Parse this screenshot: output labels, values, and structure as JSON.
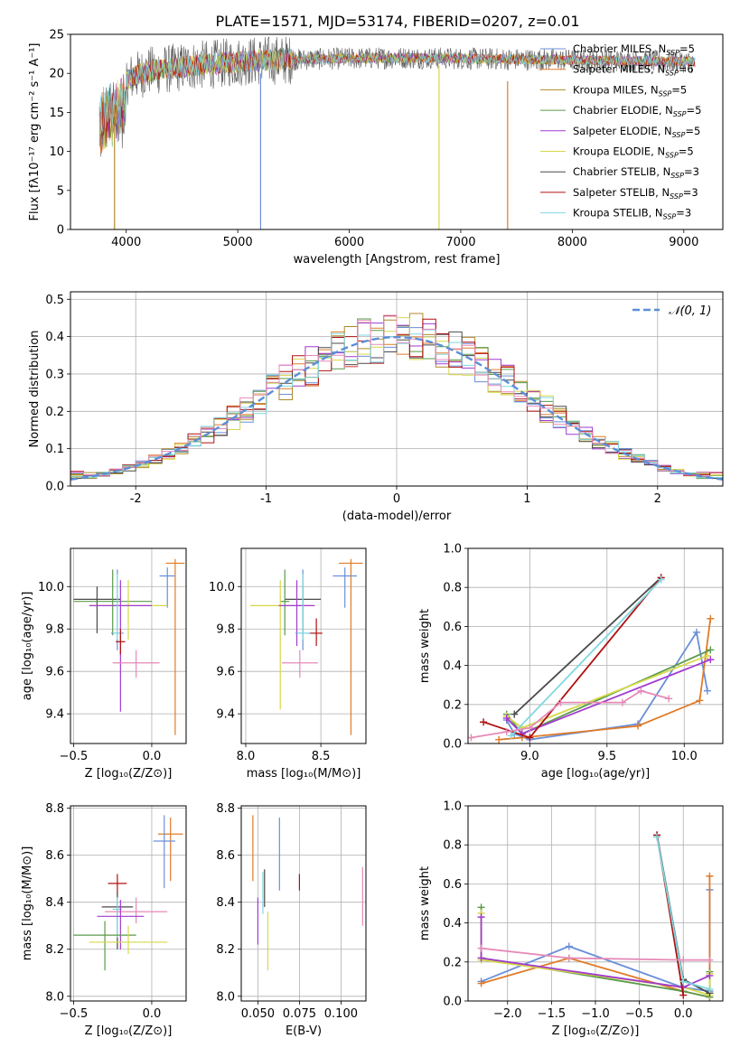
{
  "figure_title": "PLATE=1571, MJD=53174, FIBERID=0207, z=0.01",
  "colors": {
    "chabrier_miles": "#6a8fd8",
    "salpeter_miles": "#e07b28",
    "kroupa_miles": "#b08a2a",
    "chabrier_elodie": "#5a9a4a",
    "salpeter_elodie": "#a23ad0",
    "kroupa_elodie": "#d6d84a",
    "chabrier_stelib": "#4a4a4a",
    "salpeter_stelib": "#b01010",
    "kroupa_stelib": "#7fd8e0",
    "pink": "#e68ab8",
    "grid": "#b0b0b0",
    "normal_curve": "#5b8fd8"
  },
  "chart_data": [
    {
      "id": "spectrum",
      "type": "line",
      "title": "PLATE=1571, MJD=53174, FIBERID=0207, z=0.01",
      "xlabel": "wavelength [Angstrom, rest frame]",
      "ylabel": "Flux [fλ10⁻¹⁷ erg cm⁻² s⁻¹ A⁻¹]",
      "xlim": [
        3500,
        9350
      ],
      "ylim": [
        0,
        25
      ],
      "xticks": [
        4000,
        5000,
        6000,
        7000,
        8000,
        9000
      ],
      "yticks": [
        0,
        5,
        10,
        15,
        20,
        25
      ],
      "grid": false,
      "legend_position": "top-right",
      "legend": [
        {
          "label": "Chabrier MILES, N",
          "sub": "SSP",
          "suffix": "=5",
          "color_key": "chabrier_miles"
        },
        {
          "label": "Salpeter MILES, N",
          "sub": "SSP",
          "suffix": "=6",
          "color_key": "salpeter_miles"
        },
        {
          "label": "Kroupa MILES, N",
          "sub": "SSP",
          "suffix": "=5",
          "color_key": "kroupa_miles"
        },
        {
          "label": "Chabrier ELODIE, N",
          "sub": "SSP",
          "suffix": "=5",
          "color_key": "chabrier_elodie"
        },
        {
          "label": "Salpeter ELODIE, N",
          "sub": "SSP",
          "suffix": "=5",
          "color_key": "salpeter_elodie"
        },
        {
          "label": "Kroupa ELODIE, N",
          "sub": "SSP",
          "suffix": "=5",
          "color_key": "kroupa_elodie"
        },
        {
          "label": "Chabrier STELIB, N",
          "sub": "SSP",
          "suffix": "=3",
          "color_key": "chabrier_stelib"
        },
        {
          "label": "Salpeter STELIB, N",
          "sub": "SSP",
          "suffix": "=3",
          "color_key": "salpeter_stelib"
        },
        {
          "label": "Kroupa STELIB, N",
          "sub": "SSP",
          "suffix": "=3",
          "color_key": "kroupa_stelib"
        }
      ],
      "continuum": {
        "x": [
          3750,
          3850,
          3950,
          4050,
          4200,
          4400,
          4600,
          4800,
          5000,
          5300,
          5600,
          6000,
          6500,
          7000,
          7500,
          8000,
          8500,
          9000,
          9100
        ],
        "y": [
          16.5,
          17.5,
          18.5,
          19.5,
          20.3,
          20.6,
          21.0,
          21.2,
          21.5,
          21.7,
          21.8,
          21.9,
          22.0,
          21.9,
          21.8,
          21.7,
          21.6,
          21.5,
          21.4
        ]
      },
      "drop_lines": [
        {
          "x": 3895,
          "ymin": 0,
          "ymax": 14,
          "color_key": "kroupa_miles"
        },
        {
          "x": 5205,
          "ymin": 0,
          "ymax": 20,
          "color_key": "chabrier_miles"
        },
        {
          "x": 6805,
          "ymin": 0,
          "ymax": 21,
          "color_key": "kroupa_elodie"
        },
        {
          "x": 7420,
          "ymin": 0,
          "ymax": 19,
          "color_key": "salpeter_miles"
        }
      ]
    },
    {
      "id": "residuals",
      "type": "histogram",
      "xlabel": "(data-model)/error",
      "ylabel": "Normed distribution",
      "xlim": [
        -2.5,
        2.5
      ],
      "ylim": [
        0,
        0.52
      ],
      "xticks": [
        -2,
        -1,
        0,
        1,
        2
      ],
      "yticks": [
        0.0,
        0.1,
        0.2,
        0.3,
        0.4,
        0.5
      ],
      "grid": true,
      "legend_position": "top-right",
      "legend": [
        {
          "label": "𝒩(0, 1)",
          "color_key": "normal_curve",
          "style": "dashed"
        }
      ],
      "bin_width": 0.1,
      "bin_start": -2.5,
      "normal_curve": {
        "mean": 0,
        "sigma": 1
      },
      "series_color_keys": [
        "chabrier_miles",
        "salpeter_miles",
        "kroupa_miles",
        "chabrier_elodie",
        "salpeter_elodie",
        "kroupa_elodie",
        "chabrier_stelib",
        "salpeter_stelib",
        "kroupa_stelib",
        "pink"
      ]
    },
    {
      "id": "z_vs_age",
      "type": "errorbar",
      "xlabel": "Z [log₁₀(Z/Z⊙)]",
      "ylabel": "age  [log₁₀(age/yr)]",
      "xlim": [
        -0.52,
        0.22
      ],
      "ylim": [
        9.26,
        10.18
      ],
      "xticks": [
        -0.5,
        0.0
      ],
      "xtick_labels": [
        "−0.5",
        "0.0"
      ],
      "yticks": [
        9.4,
        9.6,
        9.8,
        10.0
      ],
      "ytick_labels": [
        "9.4",
        "9.6",
        "9.8",
        "10.0"
      ],
      "grid": true,
      "points": [
        {
          "x": 0.15,
          "xerr": 0.06,
          "y": 10.11,
          "ylo": 9.3,
          "yhi": 10.13,
          "color_key": "salpeter_miles"
        },
        {
          "x": 0.1,
          "xerr": 0.05,
          "y": 10.05,
          "ylo": 9.9,
          "yhi": 10.09,
          "color_key": "chabrier_miles"
        },
        {
          "x": -0.35,
          "xerr": 0.15,
          "y": 9.94,
          "ylo": 9.78,
          "yhi": 10.0,
          "color_key": "chabrier_stelib"
        },
        {
          "x": -0.25,
          "xerr": 0.25,
          "y": 9.93,
          "ylo": 9.77,
          "yhi": 10.08,
          "color_key": "chabrier_elodie"
        },
        {
          "x": -0.15,
          "xerr": 0.25,
          "y": 9.91,
          "ylo": 9.75,
          "yhi": 10.03,
          "color_key": "kroupa_elodie"
        },
        {
          "x": -0.2,
          "xerr": 0.2,
          "y": 9.91,
          "ylo": 9.41,
          "yhi": 10.03,
          "color_key": "salpeter_elodie"
        },
        {
          "x": -0.22,
          "xerr": 0.04,
          "y": 9.78,
          "ylo": 9.7,
          "yhi": 10.08,
          "color_key": "chabrier_miles"
        },
        {
          "x": -0.22,
          "xerr": 0.03,
          "y": 9.78,
          "ylo": 9.75,
          "yhi": 10.06,
          "color_key": "kroupa_stelib"
        },
        {
          "x": -0.2,
          "xerr": 0.03,
          "y": 9.74,
          "ylo": 9.68,
          "yhi": 9.8,
          "color_key": "salpeter_stelib"
        },
        {
          "x": -0.1,
          "xerr": 0.15,
          "y": 9.64,
          "ylo": 9.57,
          "yhi": 9.7,
          "color_key": "pink"
        }
      ]
    },
    {
      "id": "mass_vs_age",
      "type": "errorbar",
      "xlabel": "mass [log₁₀(M/M⊙)]",
      "ylabel": "",
      "xlim": [
        7.97,
        8.8
      ],
      "ylim": [
        9.26,
        10.18
      ],
      "xticks": [
        8.0,
        8.5
      ],
      "xtick_labels": [
        "8.0",
        "8.5"
      ],
      "yticks": [
        9.4,
        9.6,
        9.8,
        10.0
      ],
      "ytick_labels": [
        "9.4",
        "9.6",
        "9.8",
        "10.0"
      ],
      "grid": true,
      "points": [
        {
          "x": 8.7,
          "xerr": 0.08,
          "y": 10.11,
          "ylo": 9.3,
          "yhi": 10.13,
          "color_key": "salpeter_miles"
        },
        {
          "x": 8.66,
          "xerr": 0.08,
          "y": 10.05,
          "ylo": 9.9,
          "yhi": 10.09,
          "color_key": "chabrier_miles"
        },
        {
          "x": 8.38,
          "xerr": 0.12,
          "y": 9.94,
          "ylo": 9.78,
          "yhi": 10.0,
          "color_key": "chabrier_stelib"
        },
        {
          "x": 8.26,
          "xerr": 0.03,
          "y": 9.93,
          "ylo": 9.77,
          "yhi": 10.08,
          "color_key": "chabrier_elodie"
        },
        {
          "x": 8.23,
          "xerr": 0.2,
          "y": 9.91,
          "ylo": 9.42,
          "yhi": 10.03,
          "color_key": "kroupa_elodie"
        },
        {
          "x": 8.34,
          "xerr": 0.12,
          "y": 9.91,
          "ylo": 9.72,
          "yhi": 10.03,
          "color_key": "salpeter_elodie"
        },
        {
          "x": 8.38,
          "xerr": 0.05,
          "y": 9.78,
          "ylo": 9.7,
          "yhi": 10.08,
          "color_key": "chabrier_miles"
        },
        {
          "x": 8.38,
          "xerr": 0.04,
          "y": 9.78,
          "ylo": 9.75,
          "yhi": 10.06,
          "color_key": "kroupa_stelib"
        },
        {
          "x": 8.47,
          "xerr": 0.04,
          "y": 9.78,
          "ylo": 9.72,
          "yhi": 9.85,
          "color_key": "salpeter_stelib"
        },
        {
          "x": 8.36,
          "xerr": 0.12,
          "y": 9.64,
          "ylo": 9.57,
          "yhi": 9.7,
          "color_key": "pink"
        }
      ]
    },
    {
      "id": "age_vs_mass_weight",
      "type": "line",
      "xlabel": "age  [log₁₀(age/yr)]",
      "ylabel": "mass weight",
      "xlim": [
        8.6,
        10.25
      ],
      "ylim": [
        0,
        1.0
      ],
      "xticks": [
        9.0,
        9.5,
        10.0
      ],
      "xtick_labels": [
        "9.0",
        "9.5",
        "10.0"
      ],
      "yticks": [
        0.0,
        0.2,
        0.4,
        0.6,
        0.8,
        1.0
      ],
      "ytick_labels": [
        "0.0",
        "0.2",
        "0.4",
        "0.6",
        "0.8",
        "1.0"
      ],
      "grid": true,
      "marker": "+",
      "series": [
        {
          "color_key": "chabrier_miles",
          "x": [
            8.85,
            8.9,
            9.0,
            9.7,
            10.08,
            10.15
          ],
          "y": [
            0.12,
            0.05,
            0.02,
            0.1,
            0.57,
            0.27
          ]
        },
        {
          "color_key": "salpeter_miles",
          "x": [
            8.8,
            8.95,
            9.7,
            10.1,
            10.17
          ],
          "y": [
            0.02,
            0.03,
            0.09,
            0.22,
            0.64
          ]
        },
        {
          "color_key": "chabrier_elodie",
          "x": [
            8.85,
            8.95,
            10.17
          ],
          "y": [
            0.15,
            0.05,
            0.48
          ]
        },
        {
          "color_key": "kroupa_elodie",
          "x": [
            8.85,
            8.95,
            10.15
          ],
          "y": [
            0.14,
            0.08,
            0.45
          ]
        },
        {
          "color_key": "salpeter_elodie",
          "x": [
            8.85,
            8.95,
            10.17
          ],
          "y": [
            0.13,
            0.05,
            0.43
          ]
        },
        {
          "color_key": "chabrier_stelib",
          "x": [
            8.9,
            9.85
          ],
          "y": [
            0.15,
            0.85
          ]
        },
        {
          "color_key": "salpeter_stelib",
          "x": [
            8.7,
            9.0,
            9.85
          ],
          "y": [
            0.11,
            0.03,
            0.85
          ]
        },
        {
          "color_key": "kroupa_stelib",
          "x": [
            8.88,
            9.85
          ],
          "y": [
            0.04,
            0.84
          ]
        },
        {
          "color_key": "pink",
          "x": [
            8.62,
            8.85,
            9.0,
            9.2,
            9.6,
            9.72,
            9.9
          ],
          "y": [
            0.03,
            0.06,
            0.08,
            0.21,
            0.21,
            0.27,
            0.23
          ]
        }
      ]
    },
    {
      "id": "z_vs_mass",
      "type": "errorbar",
      "xlabel": "Z [log₁₀(Z/Z⊙)]",
      "ylabel": "mass [log₁₀(M/M⊙)]",
      "xlim": [
        -0.52,
        0.22
      ],
      "ylim": [
        7.98,
        8.81
      ],
      "xticks": [
        -0.5,
        0.0
      ],
      "xtick_labels": [
        "−0.5",
        "0.0"
      ],
      "yticks": [
        8.0,
        8.2,
        8.4,
        8.6,
        8.8
      ],
      "ytick_labels": [
        "8.0",
        "8.2",
        "8.4",
        "8.6",
        "8.8"
      ],
      "grid": true,
      "points": [
        {
          "x": 0.12,
          "xerr": 0.08,
          "y": 8.69,
          "ylo": 8.49,
          "yhi": 8.76,
          "color_key": "salpeter_miles"
        },
        {
          "x": 0.08,
          "xerr": 0.07,
          "y": 8.66,
          "ylo": 8.46,
          "yhi": 8.77,
          "color_key": "chabrier_miles"
        },
        {
          "x": -0.22,
          "xerr": 0.06,
          "y": 8.48,
          "ylo": 8.43,
          "yhi": 8.52,
          "color_key": "salpeter_stelib"
        },
        {
          "x": -0.22,
          "xerr": 0.1,
          "y": 8.38,
          "ylo": 8.2,
          "yhi": 8.44,
          "color_key": "chabrier_stelib"
        },
        {
          "x": -0.22,
          "xerr": 0.03,
          "y": 8.37,
          "ylo": 8.25,
          "yhi": 8.42,
          "color_key": "kroupa_stelib"
        },
        {
          "x": -0.1,
          "xerr": 0.2,
          "y": 8.36,
          "ylo": 8.31,
          "yhi": 8.42,
          "color_key": "pink"
        },
        {
          "x": -0.2,
          "xerr": 0.15,
          "y": 8.34,
          "ylo": 8.2,
          "yhi": 8.41,
          "color_key": "salpeter_elodie"
        },
        {
          "x": -0.3,
          "xerr": 0.2,
          "y": 8.26,
          "ylo": 8.11,
          "yhi": 8.32,
          "color_key": "chabrier_elodie"
        },
        {
          "x": -0.15,
          "xerr": 0.25,
          "y": 8.23,
          "ylo": 8.18,
          "yhi": 8.3,
          "color_key": "kroupa_elodie"
        }
      ]
    },
    {
      "id": "ebv_vs_mass",
      "type": "errorbar",
      "xlabel": "E(B-V)",
      "ylabel": "",
      "xlim": [
        0.04,
        0.115
      ],
      "ylim": [
        7.98,
        8.81
      ],
      "xticks": [
        0.05,
        0.075,
        0.1
      ],
      "xtick_labels": [
        "0.050",
        "0.075",
        "0.100"
      ],
      "yticks": [
        8.0,
        8.2,
        8.4,
        8.6,
        8.8
      ],
      "ytick_labels": [
        "8.0",
        "8.2",
        "8.4",
        "8.6",
        "8.8"
      ],
      "grid": true,
      "points": [
        {
          "x": 0.047,
          "xerr": 0,
          "y": 8.63,
          "ylo": 8.49,
          "yhi": 8.77,
          "color_key": "salpeter_miles"
        },
        {
          "x": 0.063,
          "xerr": 0,
          "y": 8.61,
          "ylo": 8.45,
          "yhi": 8.76,
          "color_key": "chabrier_miles"
        },
        {
          "x": 0.054,
          "xerr": 0,
          "y": 8.47,
          "ylo": 8.38,
          "yhi": 8.54,
          "color_key": "chabrier_stelib"
        },
        {
          "x": 0.053,
          "xerr": 0,
          "y": 8.44,
          "ylo": 8.35,
          "yhi": 8.53,
          "color_key": "kroupa_stelib"
        },
        {
          "x": 0.05,
          "xerr": 0,
          "y": 8.32,
          "ylo": 8.22,
          "yhi": 8.42,
          "color_key": "salpeter_elodie"
        },
        {
          "x": 0.056,
          "xerr": 0,
          "y": 8.25,
          "ylo": 8.11,
          "yhi": 8.36,
          "color_key": "kroupa_elodie"
        },
        {
          "x": 0.075,
          "xerr": 0,
          "y": 8.48,
          "ylo": 8.45,
          "yhi": 8.52,
          "color_key": "salpeter_stelib"
        },
        {
          "x": 0.113,
          "xerr": 0,
          "y": 8.42,
          "ylo": 8.3,
          "yhi": 8.55,
          "color_key": "pink"
        }
      ]
    },
    {
      "id": "z_vs_mass_weight",
      "type": "line",
      "xlabel": "Z [log₁₀(Z/Z⊙)]",
      "ylabel": "mass weight",
      "xlim": [
        -2.45,
        0.45
      ],
      "ylim": [
        0,
        1.0
      ],
      "xticks": [
        -2.0,
        -1.5,
        -1.0,
        -0.5,
        0.0
      ],
      "xtick_labels": [
        "−2.0",
        "−1.5",
        "−1.0",
        "−0.5",
        "0.0"
      ],
      "yticks": [
        0.0,
        0.2,
        0.4,
        0.6,
        0.8,
        1.0
      ],
      "ytick_labels": [
        "0.0",
        "0.2",
        "0.4",
        "0.6",
        "0.8",
        "1.0"
      ],
      "grid": true,
      "marker": "+",
      "series": [
        {
          "color_key": "chabrier_miles",
          "x": [
            -2.3,
            -1.3,
            -0.01,
            0.3,
            0.3
          ],
          "y": [
            0.1,
            0.28,
            0.07,
            0.05,
            0.57
          ]
        },
        {
          "color_key": "salpeter_miles",
          "x": [
            -2.3,
            -1.3,
            0.0,
            0.3,
            0.3
          ],
          "y": [
            0.09,
            0.22,
            0.05,
            0.02,
            0.64
          ]
        },
        {
          "color_key": "chabrier_elodie",
          "x": [
            -2.3,
            -2.3,
            0.0,
            0.3,
            0.3
          ],
          "y": [
            0.48,
            0.22,
            0.05,
            0.02,
            0.15
          ]
        },
        {
          "color_key": "kroupa_elodie",
          "x": [
            -2.3,
            -2.3,
            0.0,
            0.3,
            0.3
          ],
          "y": [
            0.45,
            0.21,
            0.07,
            0.03,
            0.14
          ]
        },
        {
          "color_key": "salpeter_elodie",
          "x": [
            -2.3,
            -2.3,
            0.0,
            0.3
          ],
          "y": [
            0.43,
            0.22,
            0.07,
            0.13
          ]
        },
        {
          "color_key": "chabrier_stelib",
          "x": [
            -0.3,
            0.0,
            0.3
          ],
          "y": [
            0.85,
            0.11,
            0.04
          ]
        },
        {
          "color_key": "salpeter_stelib",
          "x": [
            -0.3,
            0.0
          ],
          "y": [
            0.85,
            0.03
          ]
        },
        {
          "color_key": "kroupa_stelib",
          "x": [
            -0.3,
            0.0,
            0.3
          ],
          "y": [
            0.84,
            0.1,
            0.06
          ]
        },
        {
          "color_key": "pink",
          "x": [
            -2.3,
            -1.3,
            0.0,
            0.3
          ],
          "y": [
            0.27,
            0.22,
            0.21,
            0.21
          ]
        }
      ]
    }
  ]
}
